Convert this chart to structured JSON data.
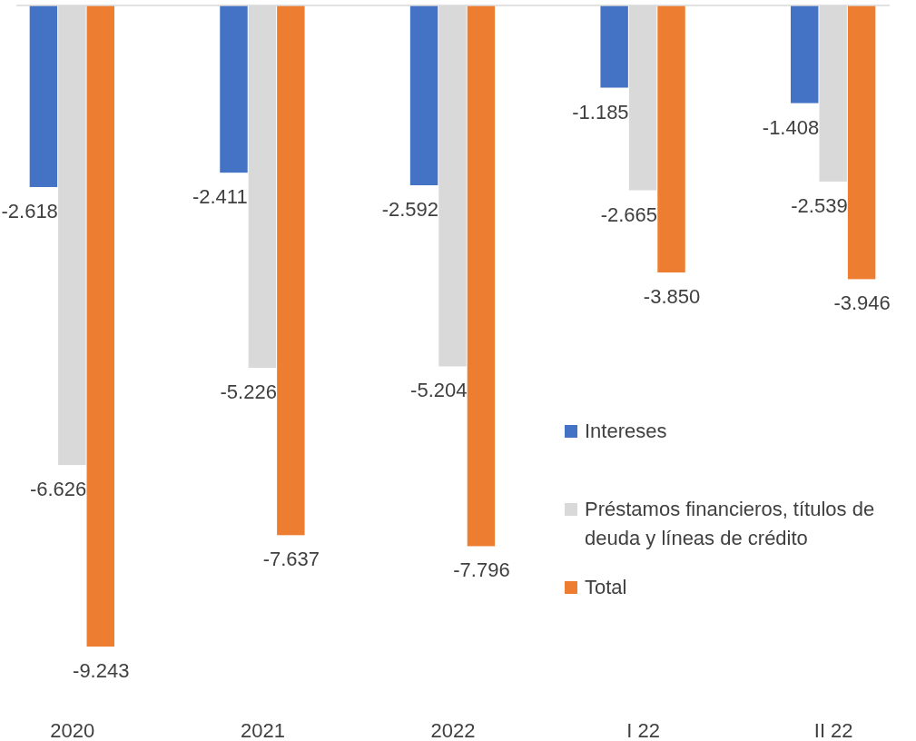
{
  "chart_data": {
    "type": "bar",
    "categories": [
      "2020",
      "2021",
      "2022",
      "I 22",
      "II 22"
    ],
    "series": [
      {
        "name": "Intereses",
        "color": "#4472c4",
        "values": [
          -2618,
          -2411,
          -2592,
          -1185,
          -1408
        ],
        "value_labels": [
          "-2.618",
          "-2.411",
          "-2.592",
          "-1.185",
          "-1.408"
        ]
      },
      {
        "name": "Préstamos financieros, títulos de deuda y líneas de crédito",
        "color": "#d9d9d9",
        "values": [
          -6626,
          -5226,
          -5204,
          -2665,
          -2539
        ],
        "value_labels": [
          "-6.626",
          "-5.226",
          "-5.204",
          "-2.665",
          "-2.539"
        ]
      },
      {
        "name": "Total",
        "color": "#ed7d31",
        "values": [
          -9243,
          -7637,
          -7796,
          -3850,
          -3946
        ],
        "value_labels": [
          "-9.243",
          "-7.637",
          "-7.796",
          "-3.850",
          "-3.946"
        ]
      }
    ],
    "legend": "bottom right"
  }
}
